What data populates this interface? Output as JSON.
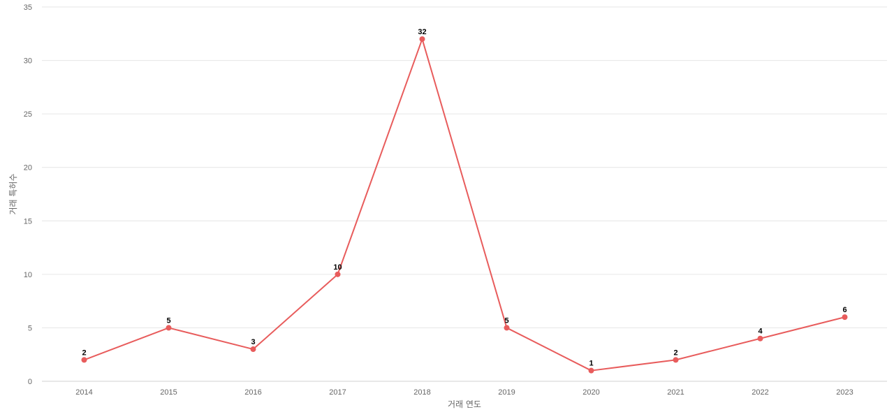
{
  "chart_data": {
    "type": "line",
    "title": "",
    "xlabel": "거래 연도",
    "ylabel": "거래 특허수",
    "x": [
      "2014",
      "2015",
      "2016",
      "2017",
      "2018",
      "2019",
      "2020",
      "2021",
      "2022",
      "2023"
    ],
    "series": [
      {
        "values": [
          2,
          5,
          3,
          10,
          32,
          5,
          1,
          2,
          4,
          6
        ]
      }
    ],
    "ylim": [
      0,
      35
    ],
    "yticks": [
      0,
      5,
      10,
      15,
      20,
      25,
      30,
      35
    ],
    "grid": true,
    "legend": "none",
    "data_labels": true,
    "colors": {
      "line": "#e85c5c",
      "grid": "#e6e6e6",
      "label": "#000000"
    }
  }
}
